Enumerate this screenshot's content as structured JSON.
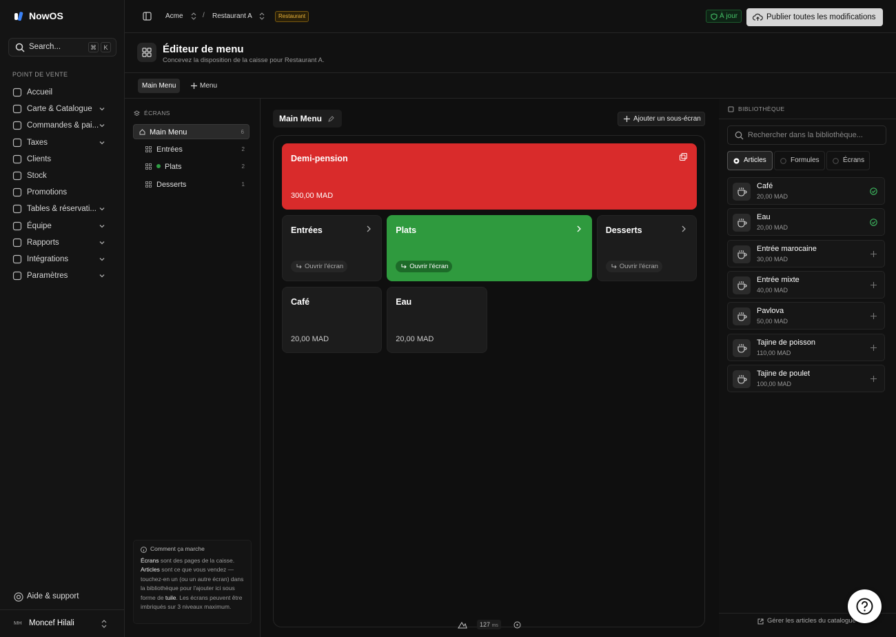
{
  "sidebar": {
    "brand": "NowOS",
    "search": "Search...",
    "shortcut": [
      "⌘",
      "K"
    ],
    "section": "POINT DE VENTE",
    "nav": [
      {
        "label": "Accueil",
        "expandable": false
      },
      {
        "label": "Carte & Catalogue",
        "expandable": true
      },
      {
        "label": "Commandes & pai...",
        "expandable": true
      },
      {
        "label": "Taxes",
        "expandable": true
      },
      {
        "label": "Clients",
        "expandable": false
      },
      {
        "label": "Stock",
        "expandable": false
      },
      {
        "label": "Promotions",
        "expandable": false
      },
      {
        "label": "Tables & réservati...",
        "expandable": true
      },
      {
        "label": "Équipe",
        "expandable": true
      },
      {
        "label": "Rapports",
        "expandable": true
      },
      {
        "label": "Intégrations",
        "expandable": true
      },
      {
        "label": "Paramètres",
        "expandable": true
      }
    ],
    "help": "Aide & support",
    "user": {
      "initials": "MH",
      "name": "Moncef Hilali"
    }
  },
  "topbar": {
    "org": "Acme",
    "separator": "/",
    "location": "Restaurant A",
    "badge": "Restaurant",
    "status": "À jour",
    "publish": "Publier toutes les modifications"
  },
  "header": {
    "title": "Éditeur de menu",
    "subtitle": "Concevez la disposition de la caisse pour Restaurant A."
  },
  "tabs": {
    "items": [
      "Main Menu"
    ],
    "add": "Menu"
  },
  "screens": {
    "heading": "ÉCRANS",
    "tree": [
      {
        "label": "Main Menu",
        "count": 6,
        "level": 0
      },
      {
        "label": "Entrées",
        "count": 2,
        "level": 1
      },
      {
        "label": "Plats",
        "count": 2,
        "level": 1,
        "dot": "#2f9e44"
      },
      {
        "label": "Desserts",
        "count": 1,
        "level": 1
      }
    ],
    "help": {
      "title": "Comment ça marche",
      "text": [
        {
          "text": "Écrans",
          "bold": true
        },
        {
          "text": " sont des pages de la caisse. ",
          "bold": false
        },
        {
          "text": "Articles",
          "bold": true
        },
        {
          "text": " sont ce que vous vendez — touchez-en un (ou un autre écran) dans la bibliothèque pour l'ajouter ici sous forme de ",
          "bold": false
        },
        {
          "text": "tuile",
          "bold": true
        },
        {
          "text": ". Les écrans peuvent être imbriqués sur 3 niveaux maximum.",
          "bold": false
        }
      ]
    }
  },
  "canvas": {
    "title": "Main Menu",
    "add": "Ajouter un sous-écran",
    "tiles": [
      {
        "name": "Demi-pension",
        "price": "300,00 MAD",
        "color": "#d92b2b"
      },
      {
        "name": "Entrées",
        "action": "Ouvrir l'écran"
      },
      {
        "name": "Plats",
        "action": "Ouvrir l'écran",
        "color": "#2f9a3e"
      },
      {
        "name": "Desserts",
        "action": "Ouvrir l'écran"
      },
      {
        "name": "Café",
        "price": "20,00 MAD"
      },
      {
        "name": "Eau",
        "price": "20,00 MAD"
      }
    ],
    "latency": 127,
    "latency_unit": "ms"
  },
  "library": {
    "heading": "BIBLIOTHÈQUE",
    "search": "Rechercher dans la bibliothèque...",
    "tabs": [
      "Articles",
      "Formules",
      "Écrans"
    ],
    "active_tab": 0,
    "items": [
      {
        "name": "Café",
        "price": "20,00 MAD",
        "added": true
      },
      {
        "name": "Eau",
        "price": "20,00 MAD",
        "added": true
      },
      {
        "name": "Entrée marocaine",
        "price": "30,00 MAD",
        "added": false
      },
      {
        "name": "Entrée mixte",
        "price": "40,00 MAD",
        "added": false
      },
      {
        "name": "Pavlova",
        "price": "50,00 MAD",
        "added": false
      },
      {
        "name": "Tajine de poisson",
        "price": "110,00 MAD",
        "added": false
      },
      {
        "name": "Tajine de poulet",
        "price": "100,00 MAD",
        "added": false
      }
    ],
    "manage": "Gérer les articles du catalogue"
  }
}
